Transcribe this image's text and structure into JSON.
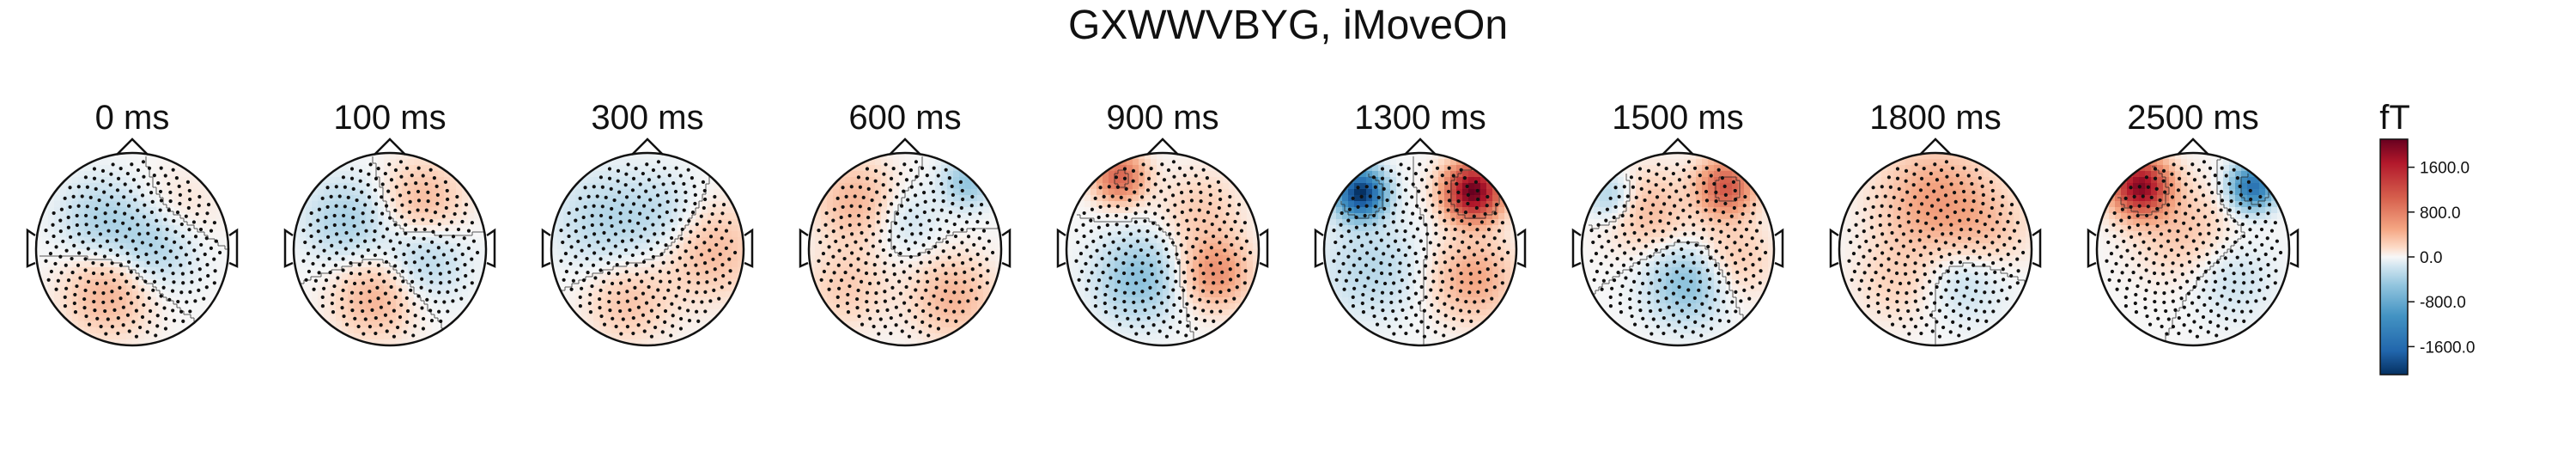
{
  "title": "GXWWVBYG, iMoveOn",
  "chart_data": {
    "type": "heatmap",
    "title": "GXWWVBYG, iMoveOn",
    "maps": [
      {
        "label": "0 ms",
        "blobs": [
          {
            "x": -0.32,
            "y": 0.3,
            "v": -350,
            "s": 0.3
          },
          {
            "x": 0.25,
            "y": 0.05,
            "v": -420,
            "s": 0.3
          },
          {
            "x": -0.25,
            "y": -0.45,
            "v": 420,
            "s": 0.32
          },
          {
            "x": 0.45,
            "y": 0.35,
            "v": 200,
            "s": 0.3
          }
        ]
      },
      {
        "label": "100 ms",
        "blobs": [
          {
            "x": -0.45,
            "y": 0.3,
            "v": -380,
            "s": 0.3
          },
          {
            "x": 0.35,
            "y": 0.5,
            "v": 380,
            "s": 0.3
          },
          {
            "x": 0.35,
            "y": -0.1,
            "v": -330,
            "s": 0.3
          },
          {
            "x": -0.15,
            "y": -0.5,
            "v": 420,
            "s": 0.3
          }
        ]
      },
      {
        "label": "300 ms",
        "blobs": [
          {
            "x": 0.65,
            "y": 0.0,
            "v": 380,
            "s": 0.35
          },
          {
            "x": -0.45,
            "y": 0.3,
            "v": -300,
            "s": 0.35
          },
          {
            "x": 0.2,
            "y": 0.35,
            "v": -250,
            "s": 0.3
          },
          {
            "x": -0.2,
            "y": -0.55,
            "v": 300,
            "s": 0.3
          }
        ]
      },
      {
        "label": "600 ms",
        "blobs": [
          {
            "x": -0.5,
            "y": 0.5,
            "v": 400,
            "s": 0.3
          },
          {
            "x": 0.65,
            "y": 0.7,
            "v": -500,
            "s": 0.18
          },
          {
            "x": 0.5,
            "y": -0.5,
            "v": 400,
            "s": 0.3
          },
          {
            "x": 0.0,
            "y": 0.3,
            "v": -200,
            "s": 0.25
          },
          {
            "x": -0.6,
            "y": -0.4,
            "v": 250,
            "s": 0.3
          }
        ]
      },
      {
        "label": "900 ms",
        "blobs": [
          {
            "x": -0.45,
            "y": 0.75,
            "v": 1000,
            "s": 0.18
          },
          {
            "x": -0.25,
            "y": -0.3,
            "v": -550,
            "s": 0.3
          },
          {
            "x": 0.55,
            "y": -0.25,
            "v": 650,
            "s": 0.25
          },
          {
            "x": 0.4,
            "y": 0.4,
            "v": 250,
            "s": 0.3
          }
        ]
      },
      {
        "label": "1300 ms",
        "blobs": [
          {
            "x": -0.62,
            "y": 0.58,
            "v": -2100,
            "s": 0.17
          },
          {
            "x": 0.55,
            "y": 0.6,
            "v": 2100,
            "s": 0.2
          },
          {
            "x": 0.55,
            "y": -0.3,
            "v": 500,
            "s": 0.3
          },
          {
            "x": -0.5,
            "y": -0.2,
            "v": -300,
            "s": 0.35
          }
        ]
      },
      {
        "label": "1500 ms",
        "blobs": [
          {
            "x": 0.5,
            "y": 0.65,
            "v": 1100,
            "s": 0.2
          },
          {
            "x": 0.1,
            "y": -0.35,
            "v": -600,
            "s": 0.28
          },
          {
            "x": -0.7,
            "y": 0.55,
            "v": -400,
            "s": 0.17
          },
          {
            "x": -0.3,
            "y": 0.4,
            "v": 350,
            "s": 0.3
          },
          {
            "x": 0.55,
            "y": -0.1,
            "v": 300,
            "s": 0.3
          }
        ]
      },
      {
        "label": "1800 ms",
        "blobs": [
          {
            "x": 0.0,
            "y": 0.5,
            "v": 550,
            "s": 0.4
          },
          {
            "x": 0.3,
            "y": -0.3,
            "v": -250,
            "s": 0.3
          },
          {
            "x": -0.4,
            "y": -0.35,
            "v": 200,
            "s": 0.3
          },
          {
            "x": 0.55,
            "y": 0.2,
            "v": 250,
            "s": 0.3
          }
        ]
      },
      {
        "label": "2500 ms",
        "blobs": [
          {
            "x": -0.55,
            "y": 0.65,
            "v": 1900,
            "s": 0.2
          },
          {
            "x": 0.62,
            "y": 0.65,
            "v": -1500,
            "s": 0.16
          },
          {
            "x": -0.1,
            "y": 0.2,
            "v": 300,
            "s": 0.35
          },
          {
            "x": 0.4,
            "y": -0.3,
            "v": -200,
            "s": 0.3
          }
        ]
      }
    ],
    "colorbar": {
      "label": "fT",
      "vmin": -2100,
      "vmax": 2100,
      "ticks": [
        1600,
        800,
        0,
        -800,
        -1600
      ],
      "tick_labels": [
        "1600.0",
        "800.0",
        "0.0",
        "-800.0",
        "-1600.0"
      ],
      "colormap": "RdBu_r"
    },
    "contours": true,
    "sensors_shown": true
  }
}
